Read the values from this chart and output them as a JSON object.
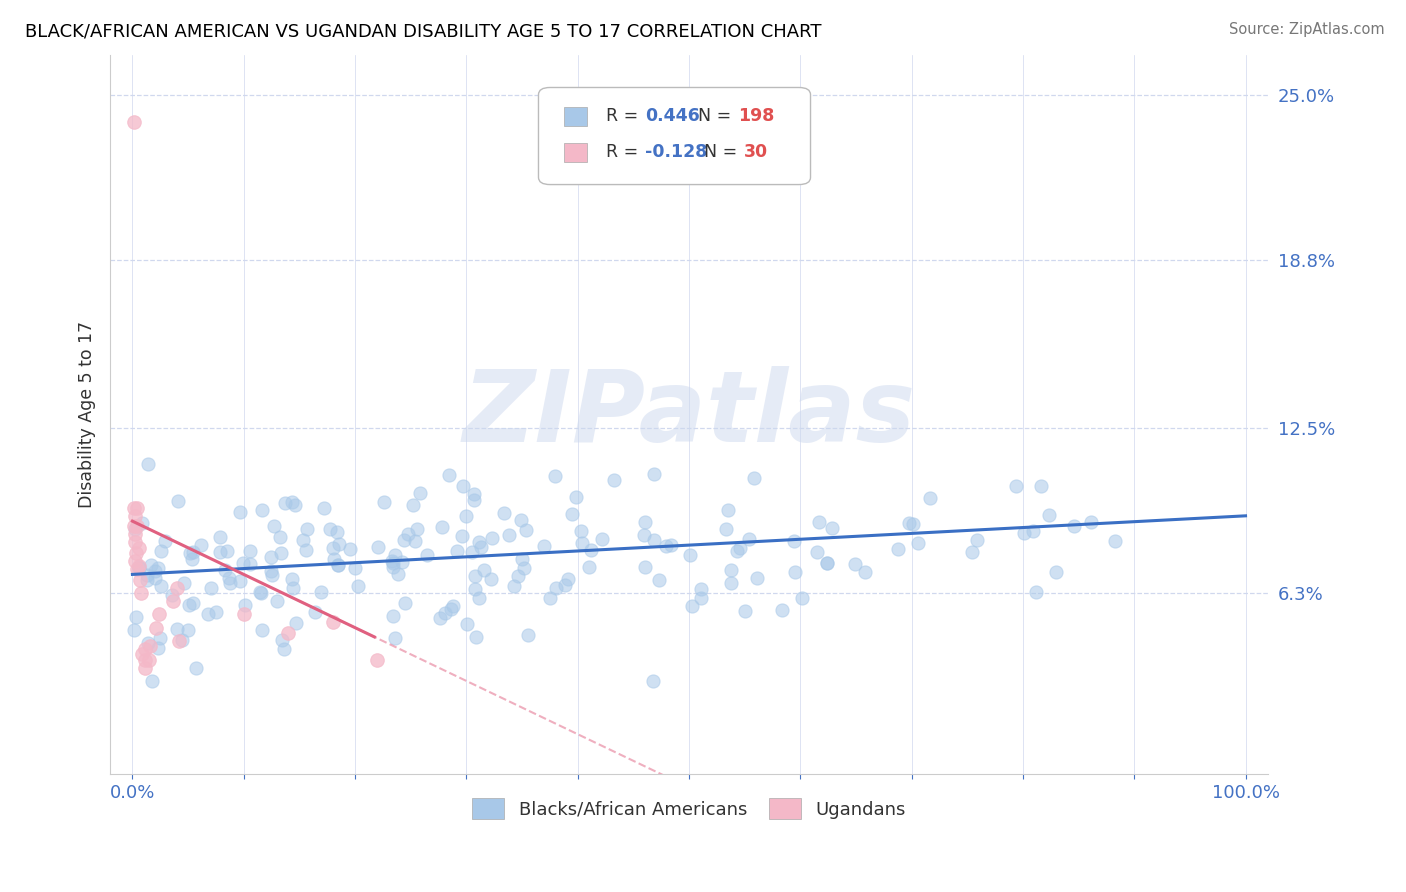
{
  "title": "BLACK/AFRICAN AMERICAN VS UGANDAN DISABILITY AGE 5 TO 17 CORRELATION CHART",
  "source": "Source: ZipAtlas.com",
  "ylabel": "Disability Age 5 to 17",
  "xlabel": "",
  "xlim": [
    -0.02,
    1.02
  ],
  "ylim": [
    -0.005,
    0.265
  ],
  "ytick_vals": [
    0.0,
    0.063,
    0.125,
    0.188,
    0.25
  ],
  "ytick_labels": [
    "",
    "6.3%",
    "12.5%",
    "18.8%",
    "25.0%"
  ],
  "xtick_vals": [
    0.0,
    0.1,
    0.2,
    0.3,
    0.4,
    0.5,
    0.6,
    0.7,
    0.8,
    0.9,
    1.0
  ],
  "xtick_labels": [
    "0.0%",
    "",
    "",
    "",
    "",
    "",
    "",
    "",
    "",
    "",
    "100.0%"
  ],
  "blue_color": "#a8c8e8",
  "pink_color": "#f4b8c8",
  "blue_line_color": "#3a6fc4",
  "pink_line_color": "#e06080",
  "tick_color": "#4472c4",
  "grid_color": "#d0d8ee",
  "watermark": "ZIPatlas",
  "blue_R": "0.446",
  "blue_N": "198",
  "pink_R": "-0.128",
  "pink_N": "30",
  "R_label_color": "#333333",
  "RN_value_color": "#4472c4",
  "N_value_color": "#e05050"
}
